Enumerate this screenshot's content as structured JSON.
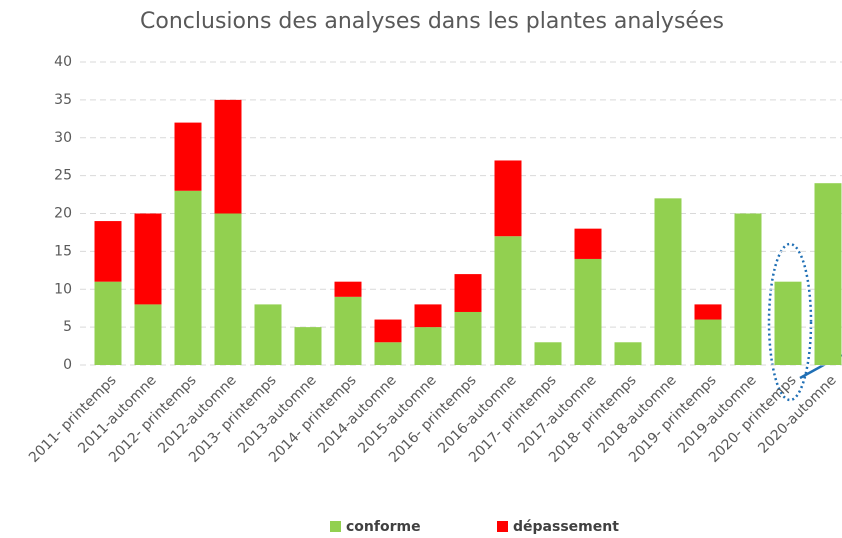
{
  "chart_data": {
    "type": "stacked_bar",
    "title": "Conclusions des analyses dans les plantes analysées",
    "categories": [
      "2011- printemps",
      "2011-automne",
      "2012- printemps",
      "2012-automne",
      "2013- printemps",
      "2013-automne",
      "2014- printemps",
      "2014-automne",
      "2015-automne",
      "2016- printemps",
      "2016-automne",
      "2017- printemps",
      "2017-automne",
      "2018- printemps",
      "2018-automne",
      "2019- printemps",
      "2019-automne",
      "2020- printemps",
      "2020-automne"
    ],
    "series": [
      {
        "name": "conforme",
        "color": "#92d050",
        "values": [
          11,
          8,
          23,
          20,
          8,
          5,
          9,
          3,
          5,
          7,
          17,
          3,
          14,
          3,
          22,
          6,
          20,
          11,
          24
        ]
      },
      {
        "name": "dépassement",
        "color": "#ff0000",
        "values": [
          8,
          12,
          9,
          15,
          0,
          0,
          2,
          3,
          3,
          5,
          10,
          0,
          4,
          0,
          0,
          2,
          0,
          0,
          0
        ]
      }
    ],
    "ylim": [
      0,
      40
    ],
    "yticks": [
      0,
      5,
      10,
      15,
      20,
      25,
      30,
      35,
      40
    ],
    "grid": true,
    "legend": "bottom"
  }
}
